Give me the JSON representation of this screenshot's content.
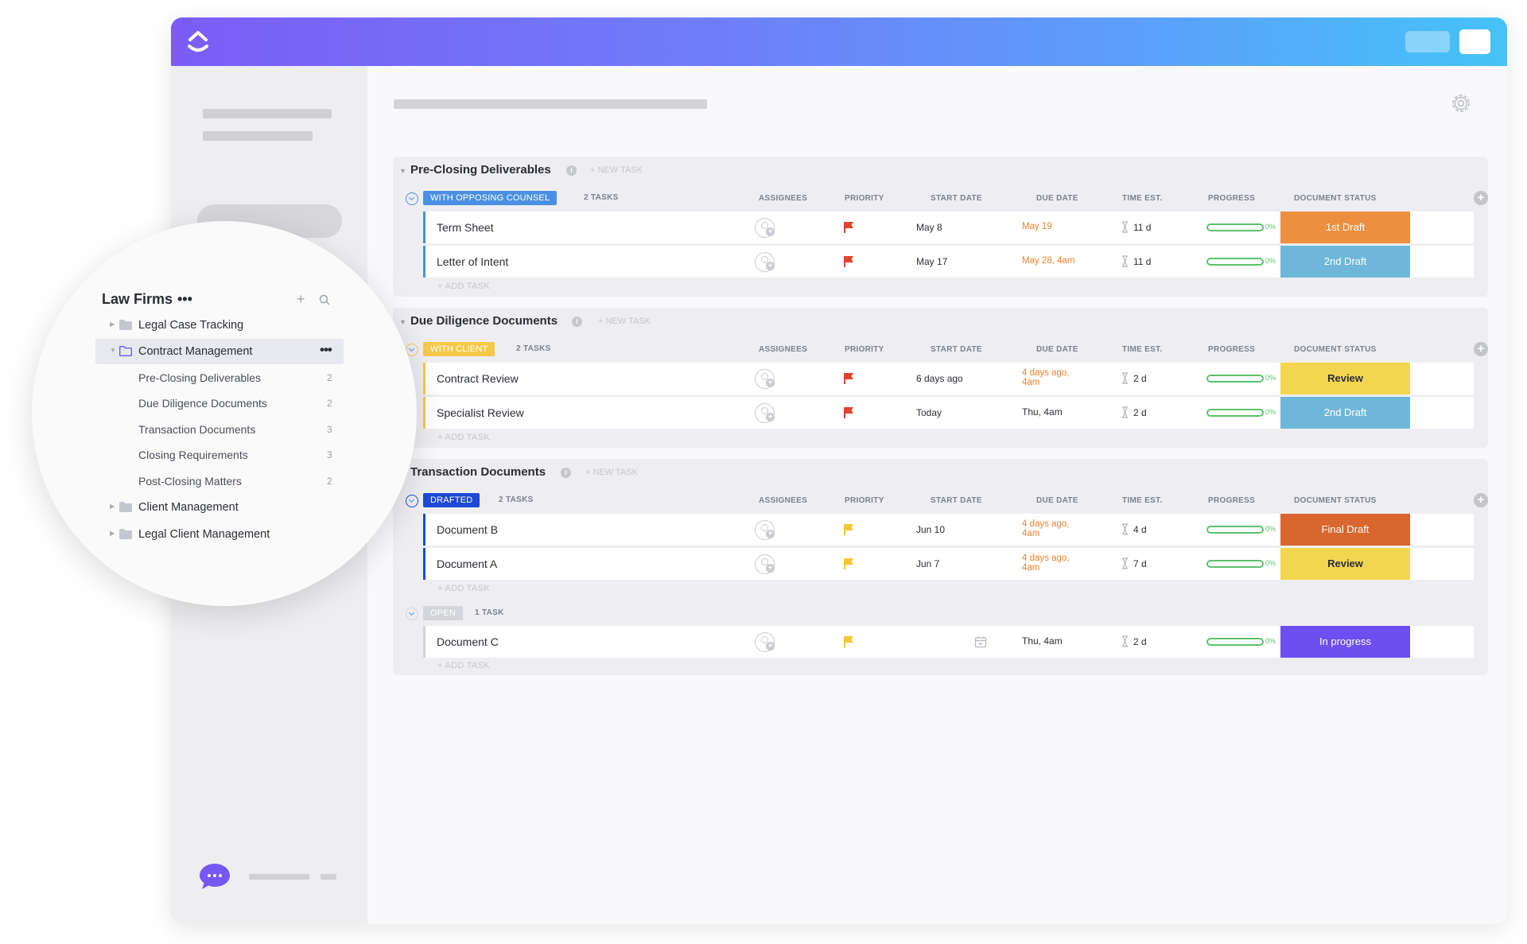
{
  "colors": {
    "opposing_counsel": "#4a90e2",
    "with_client": "#f6c94a",
    "drafted": "#1c49d6",
    "open": "#d3d5da",
    "status_1st_draft": "#ec8f3f",
    "status_2nd_draft": "#6fb7d8",
    "status_review": "#f2d650",
    "status_final_draft": "#d9652f",
    "status_in_progress": "#6c4ff0",
    "flag_red": "#e0442c",
    "flag_yellow": "#f7c533"
  },
  "columns": {
    "assignees": "ASSIGNEES",
    "priority": "PRIORITY",
    "start_date": "START DATE",
    "due_date": "DUE DATE",
    "time_est": "TIME EST.",
    "progress": "PROGRESS",
    "document_status": "DOCUMENT STATUS"
  },
  "labels": {
    "new_task": "+ NEW TASK",
    "add_task": "+ ADD TASK"
  },
  "sections": [
    {
      "title": "Pre-Closing Deliverables",
      "groups": [
        {
          "badge": "WITH OPPOSING COUNSEL",
          "count": "2 TASKS",
          "tasks": [
            {
              "name": "Term Sheet",
              "start": "May 8",
              "due": "May 19",
              "est": "11 d",
              "progress": "0%",
              "status": "1st Draft"
            },
            {
              "name": "Letter of Intent",
              "start": "May 17",
              "due": "May 28, 4am",
              "est": "11 d",
              "progress": "0%",
              "status": "2nd Draft"
            }
          ]
        }
      ]
    },
    {
      "title": "Due Diligence Documents",
      "groups": [
        {
          "badge": "WITH CLIENT",
          "count": "2 TASKS",
          "tasks": [
            {
              "name": "Contract Review",
              "start": "6 days ago",
              "due_line1": "4 days ago,",
              "due_line2": "4am",
              "est": "2 d",
              "progress": "0%",
              "status": "Review"
            },
            {
              "name": "Specialist Review",
              "start": "Today",
              "due": "Thu, 4am",
              "est": "2 d",
              "progress": "0%",
              "status": "2nd Draft"
            }
          ]
        }
      ]
    },
    {
      "title": "Transaction Documents",
      "groups": [
        {
          "badge": "DRAFTED",
          "count": "2 TASKS",
          "tasks": [
            {
              "name": "Document B",
              "start": "Jun 10",
              "due_line1": "4 days ago,",
              "due_line2": "4am",
              "est": "4 d",
              "progress": "0%",
              "status": "Final Draft"
            },
            {
              "name": "Document A",
              "start": "Jun 7",
              "due_line1": "4 days ago,",
              "due_line2": "4am",
              "est": "7 d",
              "progress": "0%",
              "status": "Review"
            }
          ]
        },
        {
          "badge": "OPEN",
          "count": "1 TASK",
          "tasks": [
            {
              "name": "Document C",
              "start": "",
              "due": "Thu, 4am",
              "est": "2 d",
              "progress": "0%",
              "status": "In progress"
            }
          ]
        }
      ]
    }
  ],
  "sidebar_zoom": {
    "title": "Law Firms",
    "title_more": "•••",
    "more": "•••",
    "folders": [
      {
        "label": "Legal Case Tracking"
      },
      {
        "label": "Contract Management"
      },
      {
        "label": "Client Management"
      },
      {
        "label": "Legal Client Management"
      }
    ],
    "lists": [
      {
        "label": "Pre-Closing Deliverables",
        "count": "2"
      },
      {
        "label": "Due Diligence Documents",
        "count": "2"
      },
      {
        "label": "Transaction Documents",
        "count": "3"
      },
      {
        "label": "Closing Requirements",
        "count": "3"
      },
      {
        "label": "Post-Closing Matters",
        "count": "2"
      }
    ]
  },
  "icons": {
    "logo": "clickup-logo",
    "gear": "gear-icon",
    "chat": "chat-bubble-icon",
    "search": "search-icon",
    "folder": "folder-icon",
    "flag": "flag-icon",
    "hourglass": "hourglass-icon",
    "calendar": "calendar-icon"
  }
}
